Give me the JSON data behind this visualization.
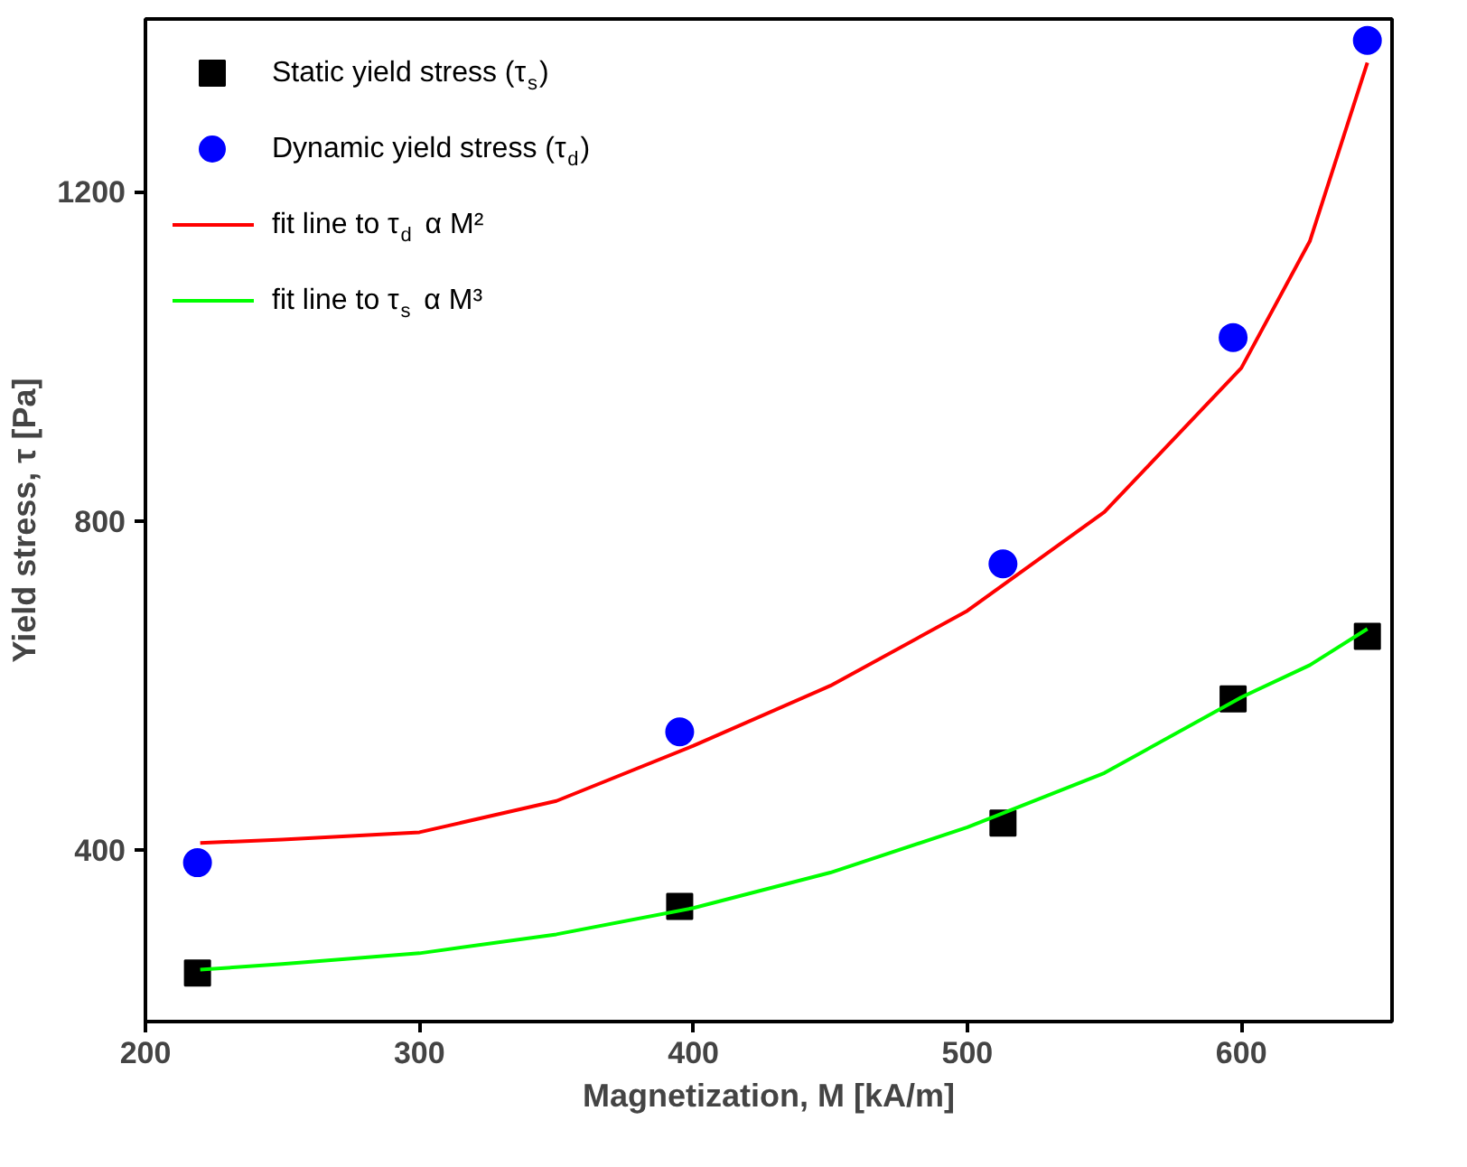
{
  "chart_data": {
    "type": "scatter",
    "xlabel": "Magnetization, M [kA/m]",
    "ylabel": "Yield stress, τ [Pa]",
    "xlim": [
      200,
      655
    ],
    "ylim": [
      192,
      1410
    ],
    "xticks": [
      200,
      300,
      400,
      500,
      600
    ],
    "yticks": [
      400,
      800,
      1200
    ],
    "grid": false,
    "legend": "top left",
    "series": [
      {
        "name": "Static yield stress (τ$_{s}$)",
        "marker": "square",
        "color": "#000000",
        "x": [
          219,
          395,
          513,
          597,
          646
        ],
        "values": [
          251,
          332,
          433,
          584,
          660
        ]
      },
      {
        "name": "Dynamic yield stress (τ$_{d}$)",
        "marker": "circle",
        "color": "#0000ff",
        "x": [
          219,
          395,
          513,
          597,
          646
        ],
        "values": [
          385,
          544,
          748,
          1023,
          1384
        ]
      },
      {
        "name": "fit line to τ$_{d}$ α M²",
        "type": "line",
        "marker": "none",
        "line_style": "solid",
        "color": "#ff0000",
        "x": [
          220,
          250,
          300,
          350,
          400,
          450,
          500,
          550,
          600,
          625,
          646
        ],
        "values": [
          409,
          413,
          422,
          460,
          527,
          600,
          691,
          811,
          986,
          1140,
          1357
        ]
      },
      {
        "name": "fit line to τ$_{s}$ α M³",
        "type": "line",
        "marker": "none",
        "line_style": "solid",
        "color": "#00ff00",
        "x": [
          220,
          250,
          300,
          350,
          400,
          450,
          500,
          550,
          600,
          625,
          646
        ],
        "values": [
          255,
          262,
          275,
          298,
          330,
          373,
          428,
          494,
          586,
          625,
          669
        ]
      }
    ]
  }
}
